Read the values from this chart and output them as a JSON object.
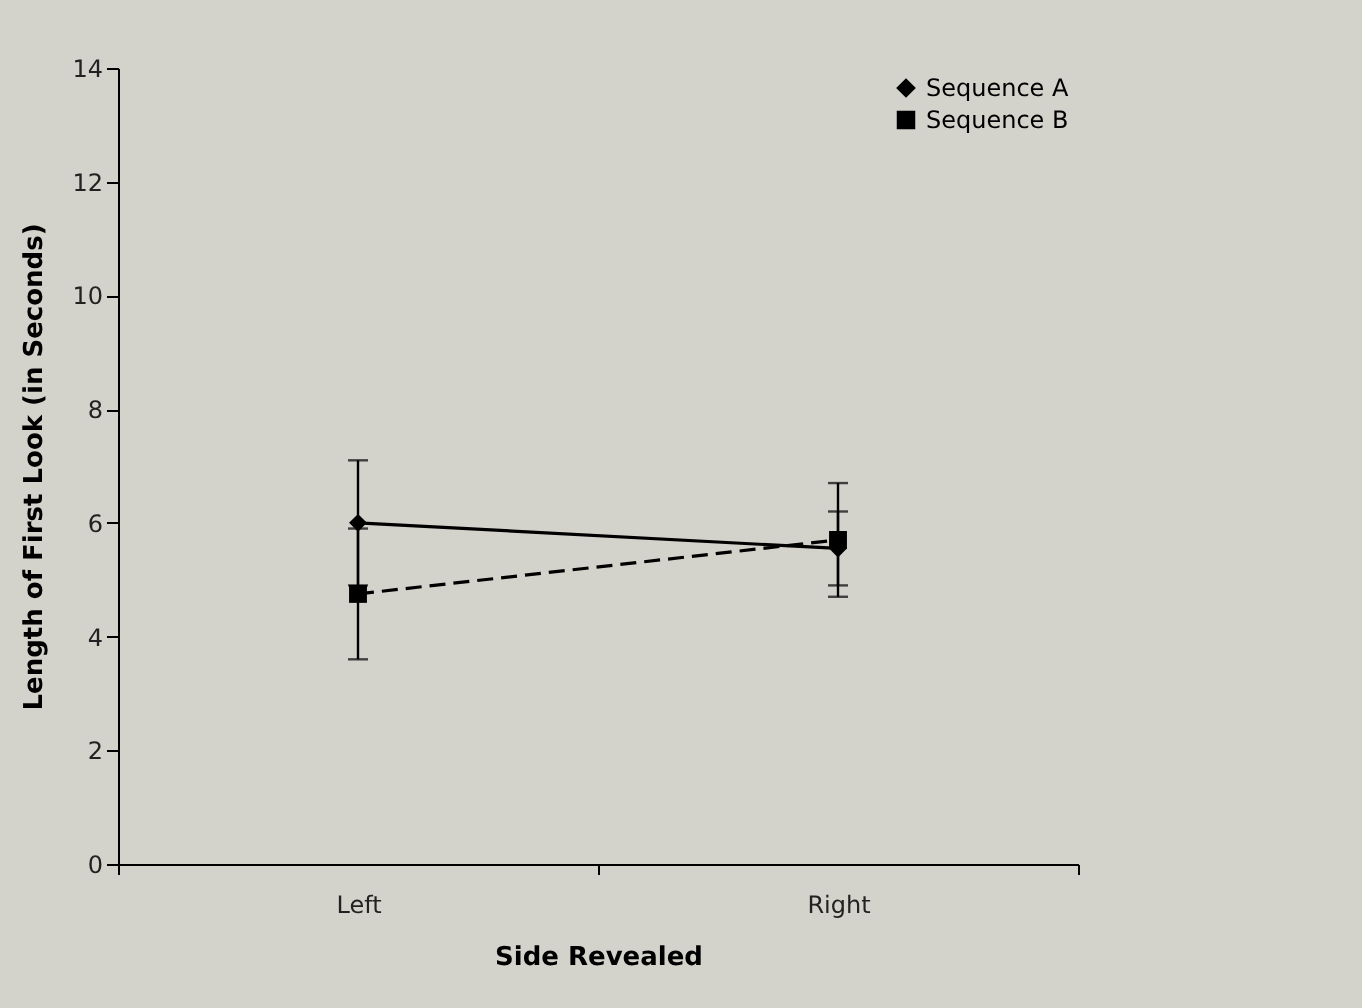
{
  "chart_data": {
    "type": "line",
    "xlabel": "Side Revealed",
    "ylabel": "Length of First Look (in Seconds)",
    "categories": [
      "Left",
      "Right"
    ],
    "series": [
      {
        "name": "Sequence A",
        "color": "#000000",
        "values": [
          6.0,
          5.55
        ],
        "errors": [
          1.1,
          0.65
        ],
        "marker": "diamond",
        "line_style": "solid"
      },
      {
        "name": "Sequence B",
        "color": "#000000",
        "values": [
          4.75,
          5.7
        ],
        "errors": [
          1.15,
          1.0
        ],
        "marker": "square",
        "line_style": "dashed"
      }
    ],
    "ylim": [
      0,
      14
    ],
    "yticks": [
      0,
      2,
      4,
      6,
      8,
      10,
      12,
      14
    ],
    "grid": false,
    "legend": "top right"
  }
}
